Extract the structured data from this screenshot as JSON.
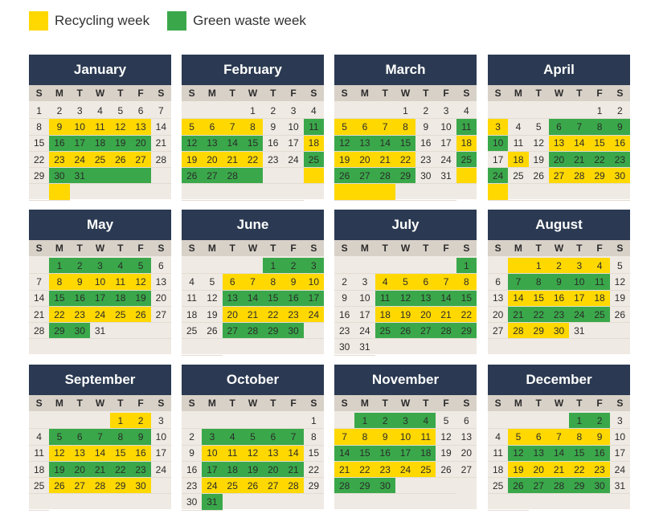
{
  "legend": {
    "recycling_label": "Recycling week",
    "recycling_color": "#ffd800",
    "green_label": "Green waste week",
    "green_color": "#3aa84a"
  },
  "weekday_labels": [
    "S",
    "M",
    "T",
    "W",
    "T",
    "F",
    "S"
  ],
  "colors": {
    "header": "#2b3a52",
    "weekday_band": "#d8d1c8",
    "cell": "#efeae3"
  },
  "months": [
    {
      "name": "January",
      "first_weekday": 0,
      "days": 31,
      "types": "NNNNNNNNYYYYYNNGGGGGNNYYYYYNNGGGGGNNY"
    },
    {
      "name": "February",
      "first_weekday": 3,
      "days": 28,
      "types": "NNNNNNNYYYYNNGGGGGNNYYYYYNNGGGGGNNYNNNNNN"
    },
    {
      "name": "March",
      "first_weekday": 3,
      "days": 31,
      "types": "NNNNNNNYYYYNNGGGGGNNYYYYYNNGGGGGNNYYYYNNN"
    },
    {
      "name": "April",
      "first_weekday": 5,
      "days": 30,
      "types": "NNNNNNNYNNGGGGGNNYYYYNYNGGGGGNNYYYYYNNNNNN"
    },
    {
      "name": "May",
      "first_weekday": 1,
      "days": 31,
      "types": "NGGGGGNNYYYYYNNGGGGGNNYYYYYNNGGNNNN"
    },
    {
      "name": "June",
      "first_weekday": 4,
      "days": 30,
      "types": "NNNNGGGNNYYYYYNNGGGGGNNYYYYYNNGGGGNNN"
    },
    {
      "name": "July",
      "first_weekday": 6,
      "days": 31,
      "types": "NNNNNNGNNYYYYYNNGGGGGNNYYYYYNNGGGGGNN"
    },
    {
      "name": "August",
      "first_weekday": 2,
      "days": 31,
      "types": "NYYYYYNNGGGGGNNYYYYYNNGGGGGNNYYYNNN"
    },
    {
      "name": "September",
      "first_weekday": 4,
      "days": 30,
      "types": "NNNNYYNNGGGGGNNYYYYYNNGGGGGNNYYYYYNN"
    },
    {
      "name": "October",
      "first_weekday": 6,
      "days": 31,
      "types": "NNNNNNNNGGGGGNNYYYYYNNGGGGGNNYYYYYNNG"
    },
    {
      "name": "November",
      "first_weekday": 1,
      "days": 30,
      "types": "NGGGGNNYYYYYNNGGGGGNNYYYYYNNGGGNNN"
    },
    {
      "name": "December",
      "first_weekday": 4,
      "days": 31,
      "types": "NNNNGGNNYYYYYNNGGGGGNNYYYYYNNGGGGGNNN"
    }
  ]
}
